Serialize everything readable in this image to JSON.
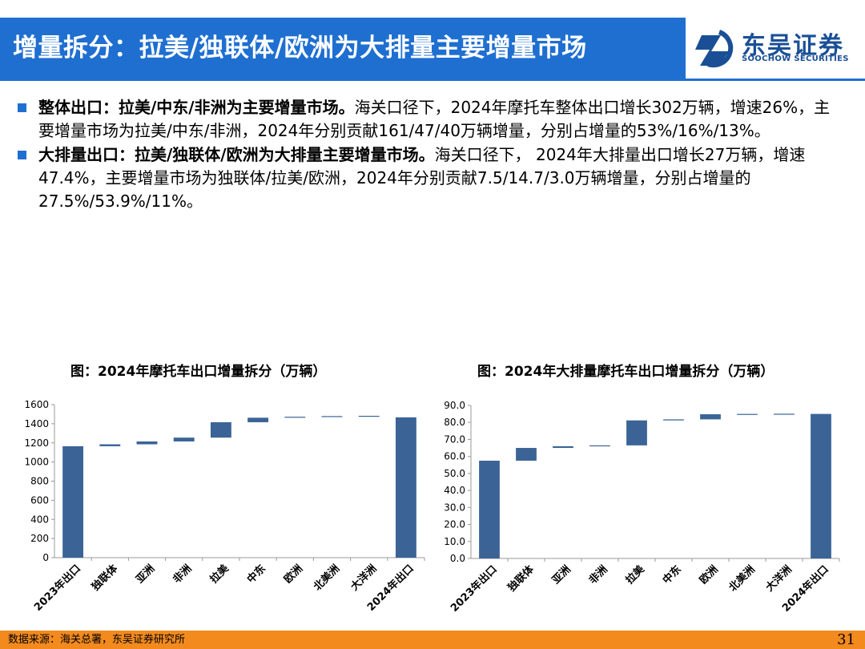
{
  "header": {
    "title": "增量拆分：拉美/独联体/欧洲为大排量主要增量市场",
    "logo_cn": "东吴证券",
    "logo_en": "SOOCHOW SECURITIES"
  },
  "bullets": [
    {
      "bold": "整体出口：拉美/中东/非洲为主要增量市场。",
      "text": "海关口径下，2024年摩托车整体出口增长302万辆，增速26%，主要增量市场为拉美/中东/非洲，2024年分别贡献161/47/40万辆增量，分别占增量的53%/16%/13%。"
    },
    {
      "bold": "大排量出口：拉美/独联体/欧洲为大排量主要增量市场。",
      "text": "海关口径下， 2024年大排量出口增长27万辆，增速47.4%，主要增量市场为独联体/拉美/欧洲，2024年分别贡献7.5/14.7/3.0万辆增量，分别占增量的27.5%/53.9%/11%。"
    }
  ],
  "chart_data": [
    {
      "type": "bar",
      "subtype": "waterfall",
      "title": "图：2024年摩托车出口增量拆分（万辆）",
      "categories": [
        "2023年出口",
        "独联体",
        "亚洲",
        "非洲",
        "拉美",
        "中东",
        "欧洲",
        "北美洲",
        "大洋洲",
        "2024年出口"
      ],
      "values": [
        1165,
        20,
        30,
        40,
        161,
        47,
        10,
        7,
        3,
        1467
      ],
      "is_total": [
        true,
        false,
        false,
        false,
        false,
        false,
        false,
        false,
        false,
        true
      ],
      "ylim": [
        0,
        1600
      ],
      "yticks": [
        "0",
        "200",
        "400",
        "600",
        "800",
        "1000",
        "1200",
        "1400",
        "1600"
      ],
      "color": "#3b6396",
      "grid": false
    },
    {
      "type": "bar",
      "subtype": "waterfall",
      "title": "图：2024年大排量摩托车出口增量拆分（万辆）",
      "categories": [
        "2023年出口",
        "独联体",
        "亚洲",
        "非洲",
        "拉美",
        "中东",
        "欧洲",
        "北美洲",
        "大洋洲",
        "2024年出口"
      ],
      "values": [
        57.5,
        7.5,
        1.0,
        0.5,
        14.7,
        0.6,
        3.0,
        0.2,
        0.1,
        85.0
      ],
      "is_total": [
        true,
        false,
        false,
        false,
        false,
        false,
        false,
        false,
        false,
        true
      ],
      "ylim": [
        0,
        90
      ],
      "yticks": [
        "0.0",
        "10.0",
        "20.0",
        "30.0",
        "40.0",
        "50.0",
        "60.0",
        "70.0",
        "80.0",
        "90.0"
      ],
      "color": "#3b6396",
      "grid": false
    }
  ],
  "footer": {
    "source": "数据来源：海关总署，东吴证券研究所",
    "page": "31"
  }
}
